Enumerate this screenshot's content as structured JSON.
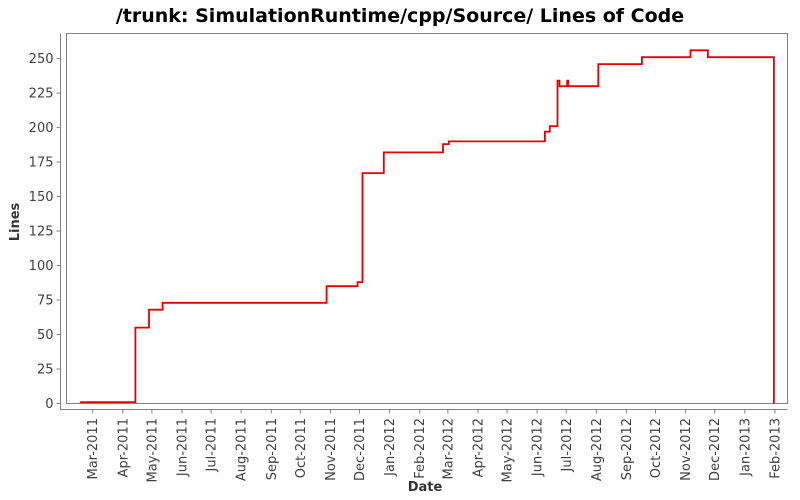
{
  "chart_data": {
    "type": "line",
    "step": true,
    "title": "/trunk: SimulationRuntime/cpp/Source/ Lines of Code",
    "xlabel": "Date",
    "ylabel": "Lines",
    "series_name": "Lines of Code",
    "series_color": "#e60000",
    "axis_color": "#808080",
    "grid": false,
    "legend": false,
    "ylim": [
      0,
      268
    ],
    "y_ticks": [
      0,
      25,
      50,
      75,
      100,
      125,
      150,
      175,
      200,
      225,
      250
    ],
    "x_range": [
      "2011-02-02",
      "2013-02-14"
    ],
    "x_ticks": [
      {
        "label": "Mar-2011",
        "date": "2011-03-01"
      },
      {
        "label": "Apr-2011",
        "date": "2011-04-01"
      },
      {
        "label": "May-2011",
        "date": "2011-05-01"
      },
      {
        "label": "Jun-2011",
        "date": "2011-06-01"
      },
      {
        "label": "Jul-2011",
        "date": "2011-07-01"
      },
      {
        "label": "Aug-2011",
        "date": "2011-08-01"
      },
      {
        "label": "Sep-2011",
        "date": "2011-09-01"
      },
      {
        "label": "Oct-2011",
        "date": "2011-10-01"
      },
      {
        "label": "Nov-2011",
        "date": "2011-11-01"
      },
      {
        "label": "Dec-2011",
        "date": "2011-12-01"
      },
      {
        "label": "Jan-2012",
        "date": "2012-01-01"
      },
      {
        "label": "Feb-2012",
        "date": "2012-02-01"
      },
      {
        "label": "Mar-2012",
        "date": "2012-03-01"
      },
      {
        "label": "Apr-2012",
        "date": "2012-04-01"
      },
      {
        "label": "May-2012",
        "date": "2012-05-01"
      },
      {
        "label": "Jun-2012",
        "date": "2012-06-01"
      },
      {
        "label": "Jul-2012",
        "date": "2012-07-01"
      },
      {
        "label": "Aug-2012",
        "date": "2012-08-01"
      },
      {
        "label": "Sep-2012",
        "date": "2012-09-01"
      },
      {
        "label": "Oct-2012",
        "date": "2012-10-01"
      },
      {
        "label": "Nov-2012",
        "date": "2012-11-01"
      },
      {
        "label": "Dec-2012",
        "date": "2012-12-01"
      },
      {
        "label": "Jan-2013",
        "date": "2013-01-01"
      },
      {
        "label": "Feb-2013",
        "date": "2013-02-01"
      }
    ],
    "points": [
      [
        "2011-02-16",
        1
      ],
      [
        "2011-04-14",
        55
      ],
      [
        "2011-04-28",
        68
      ],
      [
        "2011-05-12",
        73
      ],
      [
        "2011-10-28",
        85
      ],
      [
        "2011-11-29",
        88
      ],
      [
        "2011-12-04",
        167
      ],
      [
        "2011-12-26",
        182
      ],
      [
        "2012-02-25",
        188
      ],
      [
        "2012-03-02",
        190
      ],
      [
        "2012-06-09",
        197
      ],
      [
        "2012-06-14",
        201
      ],
      [
        "2012-06-22",
        234
      ],
      [
        "2012-06-24",
        230
      ],
      [
        "2012-07-02",
        234
      ],
      [
        "2012-07-03",
        230
      ],
      [
        "2012-08-03",
        246
      ],
      [
        "2012-09-17",
        251
      ],
      [
        "2012-11-06",
        256
      ],
      [
        "2012-11-24",
        251
      ],
      [
        "2013-01-31",
        0
      ]
    ]
  }
}
